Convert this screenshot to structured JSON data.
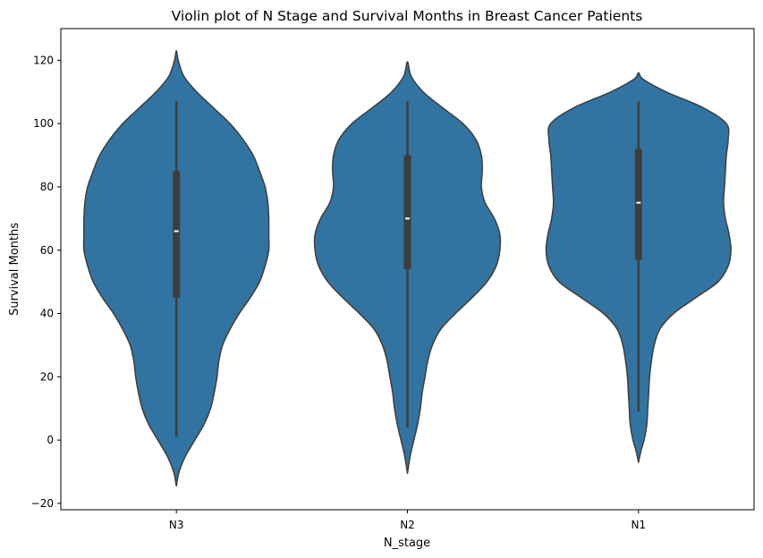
{
  "chart_data": {
    "type": "violin",
    "title": "Violin plot of N Stage and Survival Months in Breast Cancer Patients",
    "xlabel": "N_stage",
    "ylabel": "Survival Months",
    "categories": [
      "N3",
      "N2",
      "N1"
    ],
    "ylim": [
      -22,
      130
    ],
    "yticks": [
      -20,
      0,
      20,
      40,
      60,
      80,
      100,
      120
    ],
    "grid": false,
    "legend": "none",
    "colors": {
      "fill": "#3274a1",
      "edge": "#3d3d3d",
      "box": "#3d3d3d",
      "median": "#ffffff"
    },
    "violins": [
      {
        "category": "N3",
        "min": 1,
        "q1": 45,
        "median": 66,
        "q3": 85,
        "max": 107,
        "kde_min": -14.5,
        "kde_max": 123,
        "density": [
          [
            -14.5,
            0.0
          ],
          [
            -10,
            0.03
          ],
          [
            -5,
            0.1
          ],
          [
            0,
            0.2
          ],
          [
            5,
            0.3
          ],
          [
            10,
            0.37
          ],
          [
            15,
            0.41
          ],
          [
            20,
            0.44
          ],
          [
            25,
            0.46
          ],
          [
            30,
            0.5
          ],
          [
            35,
            0.58
          ],
          [
            40,
            0.68
          ],
          [
            45,
            0.8
          ],
          [
            50,
            0.9
          ],
          [
            55,
            0.96
          ],
          [
            60,
            1.0
          ],
          [
            65,
            1.0
          ],
          [
            70,
            1.0
          ],
          [
            75,
            0.99
          ],
          [
            80,
            0.96
          ],
          [
            85,
            0.9
          ],
          [
            90,
            0.83
          ],
          [
            95,
            0.72
          ],
          [
            100,
            0.58
          ],
          [
            105,
            0.4
          ],
          [
            110,
            0.22
          ],
          [
            115,
            0.08
          ],
          [
            120,
            0.02
          ],
          [
            123,
            0.0
          ]
        ]
      },
      {
        "category": "N2",
        "min": 4,
        "q1": 54,
        "median": 70,
        "q3": 90,
        "max": 107,
        "kde_min": -10.5,
        "kde_max": 119.5,
        "density": [
          [
            -10.5,
            0.0
          ],
          [
            -5,
            0.03
          ],
          [
            0,
            0.07
          ],
          [
            5,
            0.11
          ],
          [
            10,
            0.14
          ],
          [
            15,
            0.16
          ],
          [
            20,
            0.19
          ],
          [
            25,
            0.22
          ],
          [
            30,
            0.27
          ],
          [
            35,
            0.36
          ],
          [
            40,
            0.52
          ],
          [
            45,
            0.7
          ],
          [
            50,
            0.86
          ],
          [
            55,
            0.96
          ],
          [
            60,
            1.0
          ],
          [
            65,
            1.0
          ],
          [
            70,
            0.94
          ],
          [
            75,
            0.84
          ],
          [
            80,
            0.8
          ],
          [
            85,
            0.81
          ],
          [
            90,
            0.8
          ],
          [
            95,
            0.74
          ],
          [
            100,
            0.6
          ],
          [
            105,
            0.38
          ],
          [
            110,
            0.17
          ],
          [
            115,
            0.04
          ],
          [
            119.5,
            0.0
          ]
        ]
      },
      {
        "category": "N1",
        "min": 9,
        "q1": 57,
        "median": 75,
        "q3": 92,
        "max": 107,
        "kde_min": -7,
        "kde_max": 116,
        "density": [
          [
            -7,
            0.0
          ],
          [
            -3,
            0.03
          ],
          [
            0,
            0.06
          ],
          [
            5,
            0.09
          ],
          [
            10,
            0.1
          ],
          [
            15,
            0.11
          ],
          [
            20,
            0.12
          ],
          [
            25,
            0.14
          ],
          [
            30,
            0.17
          ],
          [
            35,
            0.23
          ],
          [
            40,
            0.38
          ],
          [
            45,
            0.62
          ],
          [
            50,
            0.86
          ],
          [
            55,
            0.97
          ],
          [
            60,
            1.0
          ],
          [
            65,
            0.98
          ],
          [
            70,
            0.94
          ],
          [
            75,
            0.92
          ],
          [
            80,
            0.93
          ],
          [
            85,
            0.94
          ],
          [
            90,
            0.95
          ],
          [
            95,
            0.97
          ],
          [
            100,
            0.95
          ],
          [
            105,
            0.7
          ],
          [
            110,
            0.3
          ],
          [
            114,
            0.05
          ],
          [
            116,
            0.0
          ]
        ]
      }
    ]
  }
}
